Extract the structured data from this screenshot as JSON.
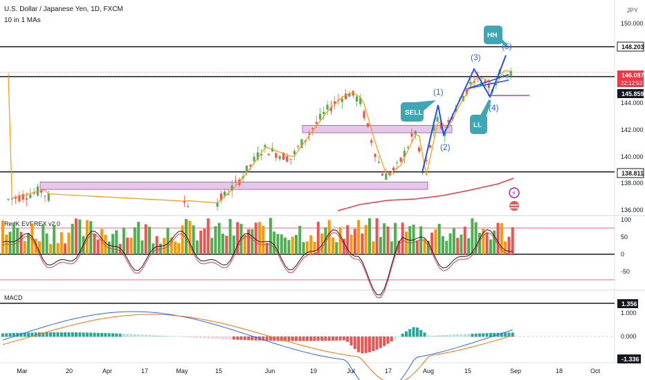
{
  "header": {
    "symbol": "U.S. Dollar / Japanese Yen, 1D, FXCM",
    "indicator": "10 in 1 MAs",
    "currency": "JPY"
  },
  "panes": {
    "everex_title": "RedK EVEREX v2.0",
    "macd_title": "MACD"
  },
  "price_axis": {
    "ticks": [
      "150.000",
      "144.000",
      "142.000",
      "140.000",
      "138.000",
      "136.000"
    ]
  },
  "price_tags": {
    "resistance": "148.203",
    "last_price": "146.087",
    "countdown": "22:12:53",
    "support_short": "145.859",
    "support": "138.811"
  },
  "everex_axis": [
    "100",
    "50",
    "0",
    "-50"
  ],
  "macd_axis": {
    "tag_top": "1.356",
    "tick_1": "1.000",
    "tick_0": "0.000",
    "tag_bottom": "-1.336"
  },
  "time_axis": [
    "Mar",
    "20",
    "Apr",
    "17",
    "May",
    "15",
    "Jun",
    "19",
    "Jul",
    "17",
    "Aug",
    "15",
    "Sep",
    "18",
    "Oct"
  ],
  "annotations": {
    "wave_1": "(1)",
    "wave_2": "(2)",
    "wave_3": "(3)",
    "wave_4": "(4)",
    "wave_5": "(5)",
    "sell": "SELL",
    "hh": "HH",
    "ll": "LL"
  },
  "colors": {
    "bull": "#26a69a",
    "bull_bright": "#4caf50",
    "bear": "#ef5350",
    "ma_orange": "#ff9800",
    "ma_red": "#f23645",
    "wave_blue": "#1e53e5",
    "zone": "#e1bee7",
    "bubble": "#3fa7b4",
    "macd_line": "#2962ff",
    "signal_line": "#ff6d00"
  },
  "chart_data": {
    "type": "candlestick",
    "title": "U.S. Dollar / Japanese Yen, 1D, FXCM",
    "ylim": [
      135.3,
      151.5
    ],
    "horizontal_levels": [
      148.203,
      145.859,
      138.811
    ],
    "last_price": 146.087,
    "key_points": [
      {
        "date": "Mar",
        "close": 136.8
      },
      {
        "date": "May",
        "close": 136.4
      },
      {
        "date": "Jun",
        "close": 139.9
      },
      {
        "date": "Jul",
        "close": 144.7
      },
      {
        "date": "Jul 17",
        "close": 137.9
      },
      {
        "date": "Aug",
        "close": 141.8
      },
      {
        "date": "Aug 15",
        "close": 145.7
      },
      {
        "date": "Sep",
        "close": 146.087
      }
    ]
  }
}
